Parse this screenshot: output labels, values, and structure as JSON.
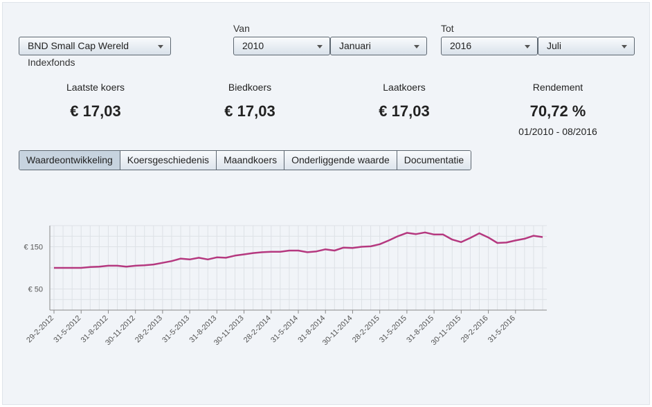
{
  "filters": {
    "fund": {
      "value": "BND Small Cap Wereld",
      "subtitle": "Indexfonds"
    },
    "from": {
      "label": "Van",
      "year": "2010",
      "month": "Januari"
    },
    "to": {
      "label": "Tot",
      "year": "2016",
      "month": "Juli"
    }
  },
  "stats": [
    {
      "title": "Laatste koers",
      "value": "€ 17,03"
    },
    {
      "title": "Biedkoers",
      "value": "€ 17,03"
    },
    {
      "title": "Laatkoers",
      "value": "€ 17,03"
    },
    {
      "title": "Rendement",
      "value": "70,72 %",
      "sub": "01/2010 - 08/2016"
    }
  ],
  "tabs": [
    "Waardeontwikkeling",
    "Koersgeschiedenis",
    "Maandkoers",
    "Onderliggende waarde",
    "Documentatie"
  ],
  "chart_data": {
    "type": "line",
    "ylim": [
      0,
      200
    ],
    "y_ticks": [
      {
        "value": 50,
        "label": "€ 50"
      },
      {
        "value": 150,
        "label": "€ 150"
      }
    ],
    "x_tick_labels": [
      "29-2-2012",
      "31-5-2012",
      "31-8-2012",
      "30-11-2012",
      "28-2-2013",
      "31-5-2013",
      "31-8-2013",
      "30-11-2013",
      "28-2-2014",
      "31-5-2014",
      "31-8-2014",
      "30-11-2014",
      "28-2-2015",
      "31-5-2015",
      "31-8-2015",
      "30-11-2015",
      "29-2-2016",
      "31-5-2016"
    ],
    "grid": true,
    "series": [
      {
        "color": "#b5387f",
        "values": [
          100,
          100,
          100,
          100,
          102,
          103,
          105,
          105,
          103,
          105,
          106,
          108,
          112,
          116,
          122,
          120,
          124,
          120,
          125,
          124,
          129,
          132,
          135,
          137,
          138,
          138,
          141,
          141,
          137,
          139,
          144,
          141,
          148,
          147,
          150,
          151,
          156,
          165,
          175,
          183,
          180,
          184,
          179,
          179,
          167,
          161,
          171,
          182,
          172,
          159,
          160,
          165,
          169,
          176,
          173
        ]
      }
    ]
  },
  "colors": {
    "line": "#b5387f",
    "accent_tab": "#c7d3df"
  }
}
